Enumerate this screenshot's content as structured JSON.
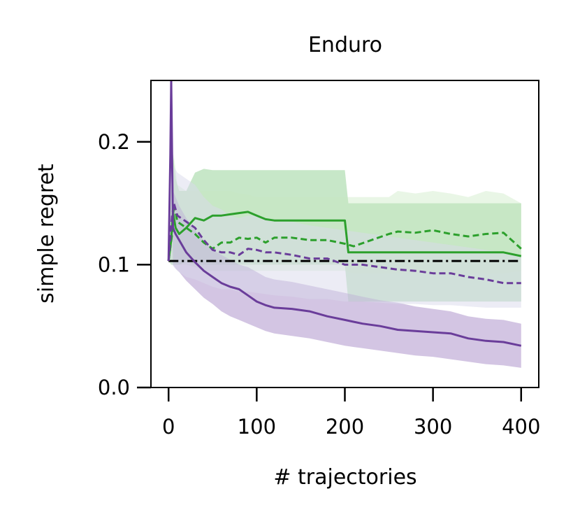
{
  "chart_data": {
    "type": "line",
    "title": "Enduro",
    "xlabel": "# trajectories",
    "ylabel": "simple regret",
    "xlim": [
      -20,
      420
    ],
    "ylim": [
      0.0,
      0.25
    ],
    "x_ticks": [
      0,
      100,
      200,
      300,
      400
    ],
    "x_tick_labels": [
      "0",
      "100",
      "200",
      "300",
      "400"
    ],
    "y_ticks": [
      0.0,
      0.1,
      0.2
    ],
    "y_tick_labels": [
      "0.0",
      "0.1",
      "0.2"
    ],
    "grid": false,
    "legend": "none",
    "series": [
      {
        "style": "solid",
        "color": "#2ca02c",
        "band_color": "#74c476",
        "x": [
          0,
          3,
          5,
          8,
          12,
          20,
          30,
          40,
          50,
          60,
          70,
          80,
          90,
          100,
          110,
          120,
          140,
          160,
          180,
          200,
          204,
          210,
          230,
          260,
          300,
          340,
          380,
          400
        ],
        "y": [
          0.103,
          0.12,
          0.143,
          0.13,
          0.125,
          0.13,
          0.138,
          0.136,
          0.14,
          0.14,
          0.141,
          0.142,
          0.143,
          0.14,
          0.137,
          0.136,
          0.136,
          0.136,
          0.136,
          0.136,
          0.11,
          0.11,
          0.11,
          0.11,
          0.11,
          0.11,
          0.11,
          0.107
        ],
        "lower": [
          0.103,
          0.1,
          0.1,
          0.1,
          0.1,
          0.102,
          0.1,
          0.1,
          0.1,
          0.1,
          0.1,
          0.1,
          0.1,
          0.1,
          0.1,
          0.1,
          0.1,
          0.1,
          0.1,
          0.1,
          0.07,
          0.07,
          0.07,
          0.07,
          0.07,
          0.07,
          0.07,
          0.07
        ],
        "upper": [
          0.103,
          0.16,
          0.19,
          0.17,
          0.16,
          0.16,
          0.175,
          0.178,
          0.177,
          0.177,
          0.177,
          0.177,
          0.177,
          0.177,
          0.177,
          0.177,
          0.177,
          0.177,
          0.177,
          0.177,
          0.15,
          0.15,
          0.15,
          0.15,
          0.15,
          0.15,
          0.15,
          0.15
        ]
      },
      {
        "style": "dashed",
        "color": "#2ca02c",
        "band_color": "#c7e9c0",
        "x": [
          0,
          4,
          6,
          10,
          20,
          30,
          40,
          50,
          60,
          70,
          80,
          90,
          100,
          110,
          120,
          140,
          160,
          180,
          200,
          210,
          230,
          250,
          260,
          280,
          300,
          320,
          340,
          360,
          380,
          400
        ],
        "y": [
          0.103,
          0.125,
          0.15,
          0.135,
          0.13,
          0.125,
          0.118,
          0.113,
          0.118,
          0.118,
          0.122,
          0.121,
          0.122,
          0.118,
          0.122,
          0.122,
          0.12,
          0.12,
          0.117,
          0.115,
          0.12,
          0.125,
          0.127,
          0.126,
          0.128,
          0.125,
          0.123,
          0.125,
          0.126,
          0.113
        ],
        "lower": [
          0.103,
          0.1,
          0.1,
          0.1,
          0.1,
          0.098,
          0.095,
          0.095,
          0.095,
          0.095,
          0.095,
          0.095,
          0.095,
          0.095,
          0.095,
          0.095,
          0.095,
          0.095,
          0.095,
          0.093,
          0.093,
          0.093,
          0.093,
          0.093,
          0.093,
          0.093,
          0.093,
          0.093,
          0.093,
          0.095
        ],
        "upper": [
          0.103,
          0.16,
          0.19,
          0.165,
          0.16,
          0.16,
          0.16,
          0.16,
          0.16,
          0.16,
          0.158,
          0.157,
          0.155,
          0.155,
          0.155,
          0.155,
          0.155,
          0.155,
          0.155,
          0.155,
          0.155,
          0.155,
          0.16,
          0.158,
          0.16,
          0.158,
          0.155,
          0.16,
          0.158,
          0.15
        ]
      },
      {
        "style": "solid",
        "color": "#6a3d9a",
        "band_color": "#9e7fc1",
        "x": [
          0,
          2,
          3,
          5,
          8,
          12,
          20,
          30,
          40,
          50,
          60,
          70,
          80,
          90,
          100,
          110,
          120,
          140,
          160,
          180,
          200,
          220,
          240,
          260,
          280,
          300,
          320,
          340,
          360,
          380,
          400
        ],
        "y": [
          0.103,
          0.19,
          0.25,
          0.13,
          0.125,
          0.12,
          0.11,
          0.102,
          0.095,
          0.09,
          0.085,
          0.082,
          0.08,
          0.075,
          0.07,
          0.067,
          0.065,
          0.064,
          0.062,
          0.058,
          0.055,
          0.052,
          0.05,
          0.047,
          0.046,
          0.045,
          0.044,
          0.04,
          0.038,
          0.037,
          0.034
        ],
        "lower": [
          0.103,
          0.15,
          0.2,
          0.1,
          0.097,
          0.094,
          0.087,
          0.08,
          0.073,
          0.068,
          0.062,
          0.058,
          0.055,
          0.052,
          0.049,
          0.046,
          0.044,
          0.042,
          0.04,
          0.037,
          0.034,
          0.032,
          0.03,
          0.028,
          0.026,
          0.025,
          0.023,
          0.021,
          0.019,
          0.018,
          0.016
        ],
        "upper": [
          0.103,
          0.22,
          0.27,
          0.16,
          0.155,
          0.148,
          0.138,
          0.128,
          0.12,
          0.112,
          0.108,
          0.104,
          0.1,
          0.098,
          0.094,
          0.09,
          0.088,
          0.086,
          0.083,
          0.08,
          0.077,
          0.074,
          0.071,
          0.069,
          0.066,
          0.064,
          0.062,
          0.058,
          0.056,
          0.055,
          0.052
        ]
      },
      {
        "style": "dashed",
        "color": "#6a3d9a",
        "band_color": "#dadaeb",
        "x": [
          0,
          4,
          6,
          10,
          20,
          30,
          40,
          50,
          60,
          70,
          80,
          90,
          100,
          110,
          120,
          140,
          160,
          180,
          200,
          220,
          240,
          260,
          280,
          300,
          320,
          340,
          360,
          380,
          400
        ],
        "y": [
          0.103,
          0.14,
          0.15,
          0.14,
          0.135,
          0.13,
          0.12,
          0.112,
          0.11,
          0.11,
          0.108,
          0.113,
          0.112,
          0.11,
          0.11,
          0.108,
          0.105,
          0.105,
          0.1,
          0.1,
          0.098,
          0.096,
          0.095,
          0.093,
          0.093,
          0.09,
          0.088,
          0.085,
          0.085
        ],
        "lower": [
          0.103,
          0.1,
          0.098,
          0.095,
          0.09,
          0.088,
          0.085,
          0.082,
          0.08,
          0.08,
          0.078,
          0.078,
          0.077,
          0.076,
          0.075,
          0.074,
          0.072,
          0.072,
          0.07,
          0.07,
          0.069,
          0.068,
          0.068,
          0.067,
          0.067,
          0.066,
          0.065,
          0.065,
          0.065
        ],
        "upper": [
          0.103,
          0.17,
          0.18,
          0.175,
          0.17,
          0.165,
          0.155,
          0.148,
          0.145,
          0.14,
          0.138,
          0.14,
          0.14,
          0.138,
          0.136,
          0.135,
          0.132,
          0.13,
          0.128,
          0.126,
          0.124,
          0.122,
          0.12,
          0.118,
          0.116,
          0.114,
          0.112,
          0.11,
          0.108
        ]
      }
    ],
    "reference_line": {
      "y": 0.103,
      "x_start": 0,
      "x_end": 400,
      "style": "dashdot",
      "color": "#000000"
    }
  }
}
